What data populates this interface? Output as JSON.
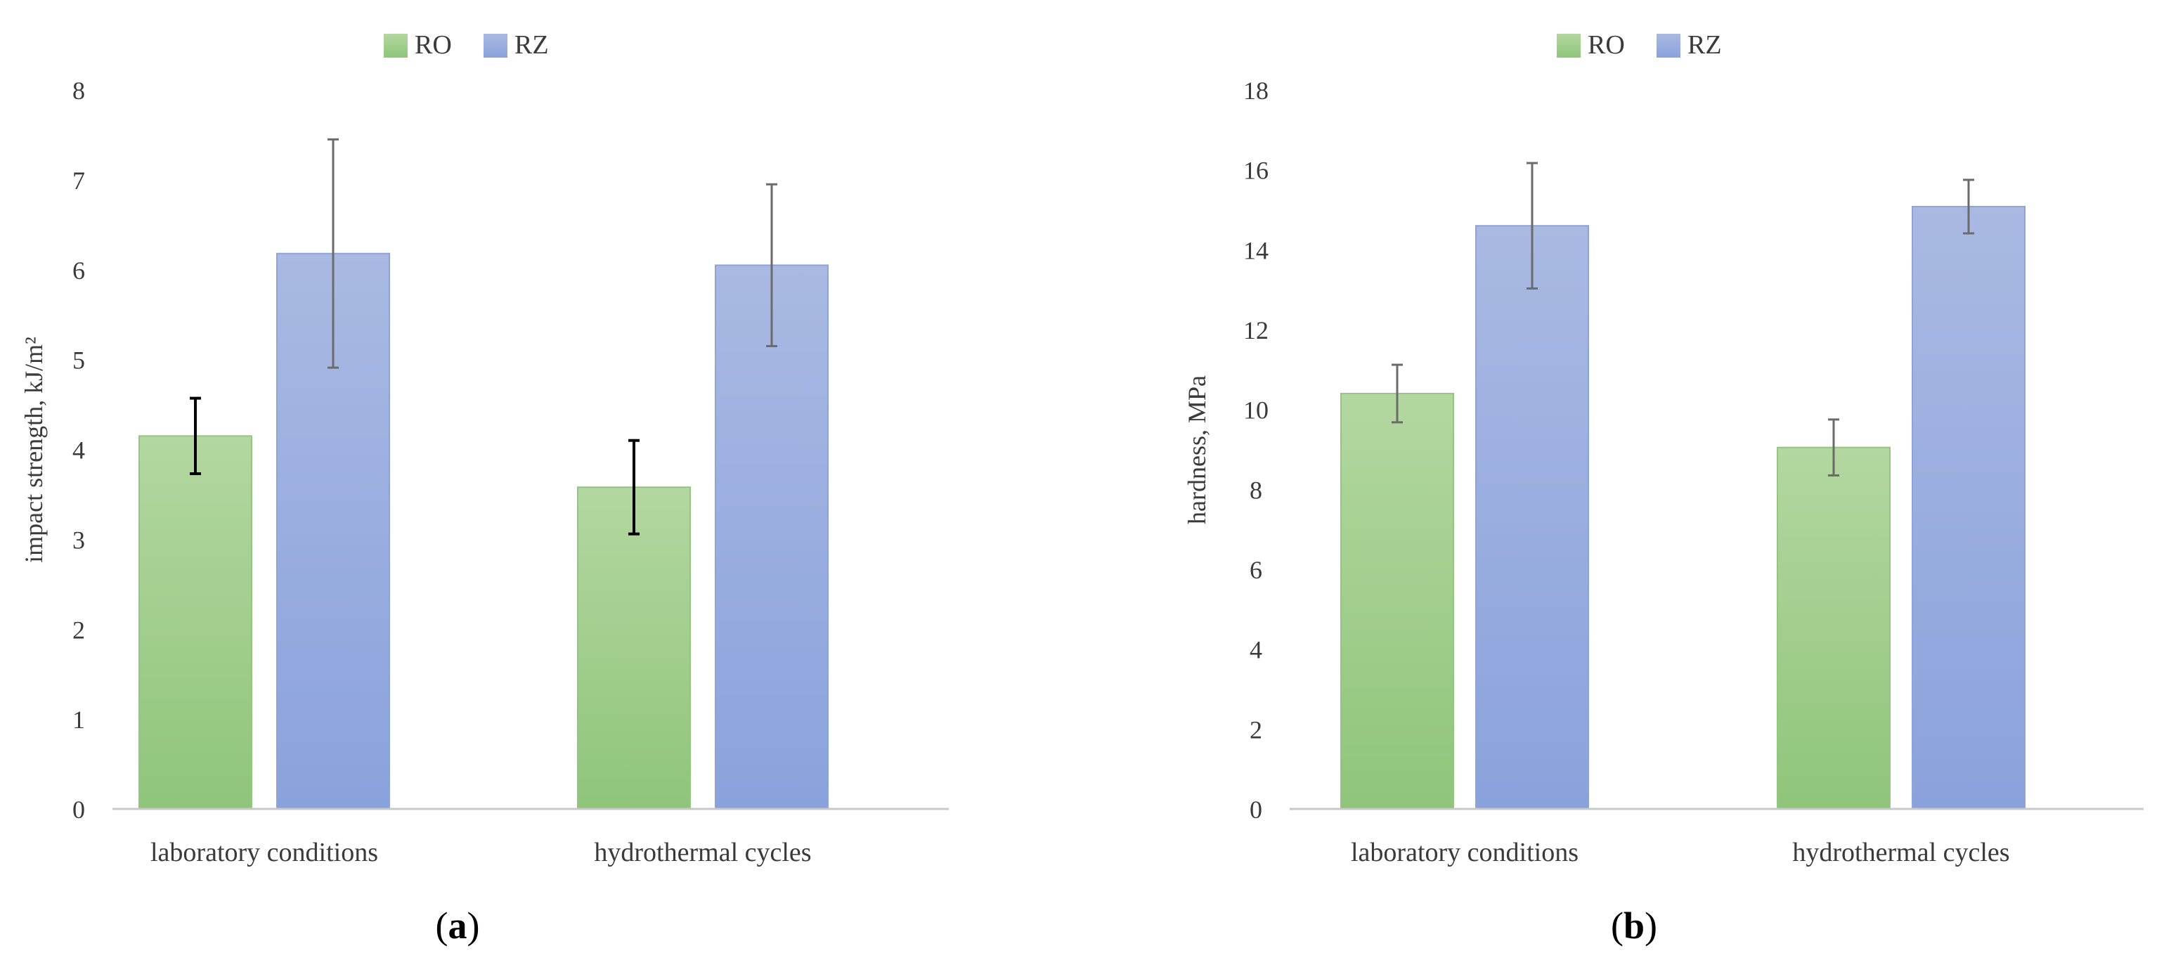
{
  "figure": {
    "panel_count": 2
  },
  "colors": {
    "RO_top": "#b3d7a0",
    "RO_bottom": "#8fc57a",
    "RZ_top": "#a9b9e2",
    "RZ_bottom": "#8aa2dc",
    "RO_edge": "#95c483",
    "RZ_edge": "#8ea3d8",
    "axis": "#c8c8c8",
    "text": "#3a3a3a",
    "errorbar_dark": "#000000",
    "errorbar_grey": "#6b6b6b"
  },
  "chart_data": [
    {
      "type": "bar",
      "panel_label": "(a)",
      "panel_letter": "a",
      "categories": [
        "laboratory conditions",
        "hydrothermal cycles"
      ],
      "ylabel": "impact strength, kJ/m²",
      "xlabel": "",
      "ylim": [
        0,
        8
      ],
      "yticks": [
        0,
        1,
        2,
        3,
        4,
        5,
        6,
        7,
        8
      ],
      "legend_position": "top-center",
      "grid": false,
      "series": [
        {
          "name": "RO",
          "values": [
            4.15,
            3.58
          ],
          "errors": [
            0.42,
            0.52
          ],
          "errorbar_color": "dark"
        },
        {
          "name": "RZ",
          "values": [
            6.18,
            6.05
          ],
          "errors": [
            1.27,
            0.9
          ],
          "errorbar_color": "grey"
        }
      ]
    },
    {
      "type": "bar",
      "panel_label": "(b)",
      "panel_letter": "b",
      "categories": [
        "laboratory conditions",
        "hydrothermal cycles"
      ],
      "ylabel": "hardness, MPa",
      "xlabel": "",
      "ylim": [
        0,
        18
      ],
      "yticks": [
        0,
        2,
        4,
        6,
        8,
        10,
        12,
        14,
        16,
        18
      ],
      "legend_position": "top-center",
      "grid": false,
      "series": [
        {
          "name": "RO",
          "values": [
            10.4,
            9.05
          ],
          "errors": [
            0.72,
            0.7
          ],
          "errorbar_color": "grey"
        },
        {
          "name": "RZ",
          "values": [
            14.6,
            15.08
          ],
          "errors": [
            1.57,
            0.67
          ],
          "errorbar_color": "grey"
        }
      ]
    }
  ]
}
